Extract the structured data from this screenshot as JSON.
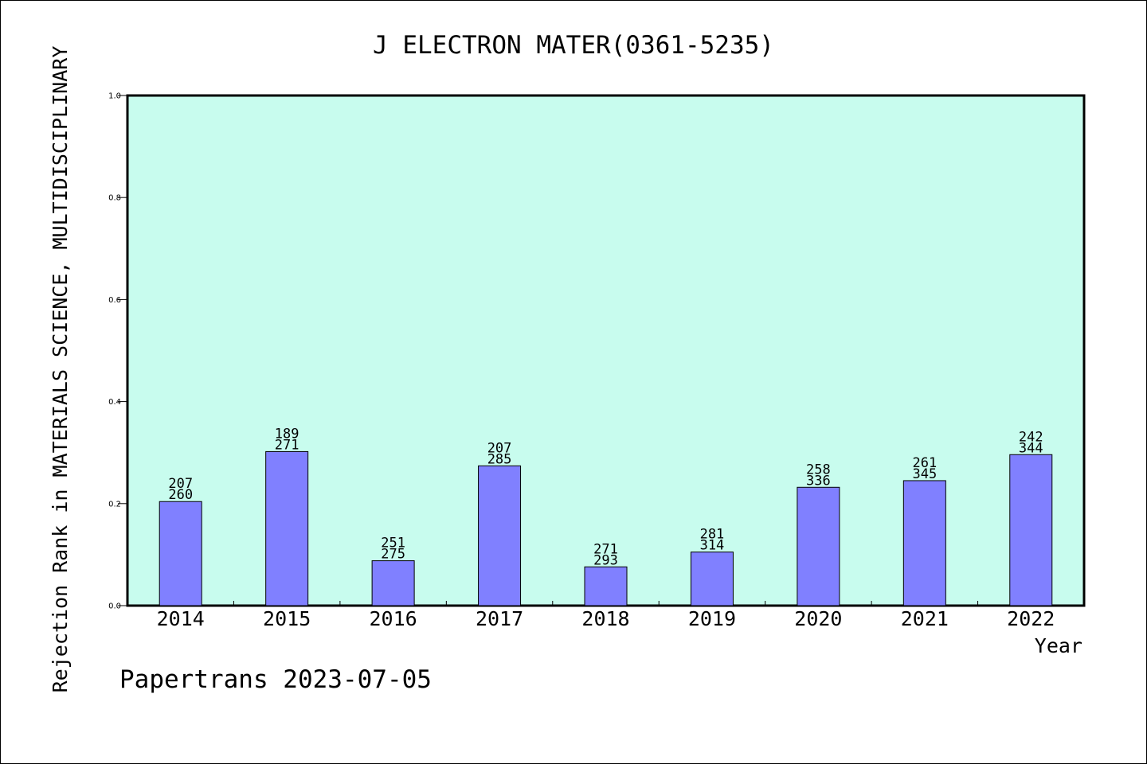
{
  "chart_data": {
    "type": "bar",
    "title": "J ELECTRON MATER(0361-5235)",
    "ylabel": "Rejection Rank in MATERIALS SCIENCE, MULTIDISCIPLINARY",
    "xlabel": "Year",
    "ylim": [
      0,
      1.0
    ],
    "yticks": [
      "0.0",
      "0.2",
      "0.4",
      "0.6",
      "0.8",
      "1.0"
    ],
    "categories": [
      "2014",
      "2015",
      "2016",
      "2017",
      "2018",
      "2019",
      "2020",
      "2021",
      "2022"
    ],
    "values": [
      0.204,
      0.302,
      0.088,
      0.274,
      0.076,
      0.105,
      0.232,
      0.245,
      0.296
    ],
    "rank_labels": [
      "207",
      "189",
      "251",
      "207",
      "271",
      "281",
      "258",
      "261",
      "242"
    ],
    "total_labels": [
      "260",
      "271",
      "275",
      "285",
      "293",
      "314",
      "336",
      "345",
      "344"
    ],
    "grid": false,
    "legend": "none",
    "colors": {
      "plot_bg": "#c8fcee",
      "bar_fill": "#8080ff",
      "bar_stroke": "#000000"
    }
  },
  "footer": {
    "text": "Papertrans 2023-07-05"
  }
}
